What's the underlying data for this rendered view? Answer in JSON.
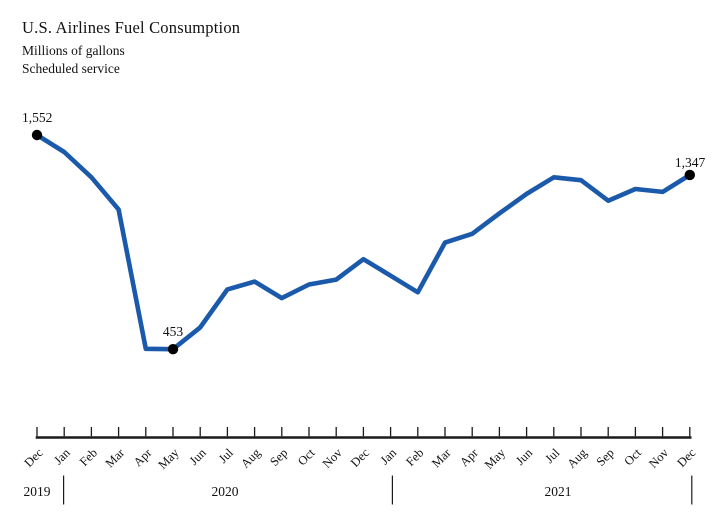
{
  "header": {
    "title": "U.S. Airlines Fuel Consumption",
    "subtitle_units": "Millions of gallons",
    "subtitle_scope": "Scheduled service"
  },
  "chart_data": {
    "type": "line",
    "title": "U.S. Airlines Fuel Consumption",
    "subtitle": [
      "Millions of gallons",
      "Scheduled service"
    ],
    "x": [
      "Dec 2019",
      "Jan 2020",
      "Feb 2020",
      "Mar 2020",
      "Apr 2020",
      "May 2020",
      "Jun 2020",
      "Jul 2020",
      "Aug 2020",
      "Sep 2020",
      "Oct 2020",
      "Nov 2020",
      "Dec 2020",
      "Jan 2021",
      "Feb 2021",
      "Mar 2021",
      "Apr 2021",
      "May 2021",
      "Jun 2021",
      "Jul 2021",
      "Aug 2021",
      "Sep 2021",
      "Oct 2021",
      "Nov 2021",
      "Dec 2021"
    ],
    "x_labels": [
      "Dec",
      "Jan",
      "Feb",
      "Mar",
      "Apr",
      "May",
      "Jun",
      "Jul",
      "Aug",
      "Sep",
      "Oct",
      "Nov",
      "Dec",
      "Jan",
      "Feb",
      "Mar",
      "Apr",
      "May",
      "Jun",
      "Jul",
      "Aug",
      "Sep",
      "Oct",
      "Nov",
      "Dec"
    ],
    "year_labels": [
      "2019",
      "2020",
      "2021"
    ],
    "series": [
      {
        "name": "Fuel consumption (millions of gallons)",
        "values": [
          1552,
          1465,
          1335,
          1170,
          455,
          453,
          565,
          760,
          800,
          715,
          785,
          810,
          915,
          830,
          745,
          1000,
          1045,
          1150,
          1250,
          1335,
          1320,
          1215,
          1275,
          1260,
          1347
        ]
      }
    ],
    "annotated_points": [
      {
        "month": "Dec 2019",
        "value": 1552,
        "label": "1,552"
      },
      {
        "month": "May 2020",
        "value": 453,
        "label": "453"
      },
      {
        "month": "Dec 2021",
        "value": 1347,
        "label": "1,347"
      }
    ],
    "ylim": [
      0,
      1650
    ],
    "grid": false,
    "legend": false,
    "line_color": "#1b5aab",
    "marker_color": "#000000",
    "axis_color": "#1a1a1a"
  }
}
